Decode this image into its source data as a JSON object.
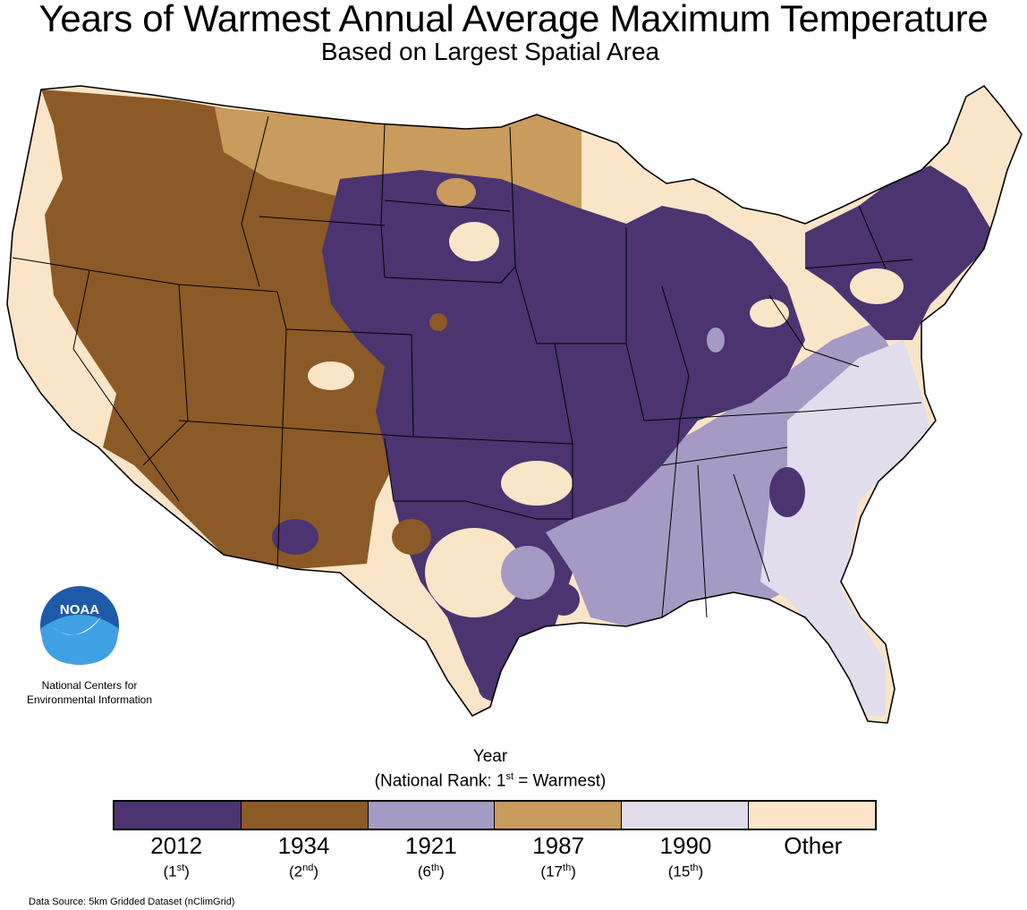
{
  "title": "Years of Warmest Annual Average Maximum Temperature",
  "subtitle": "Based on Largest Spatial Area",
  "logo": {
    "text": "NOAA",
    "org_line1": "National Centers for",
    "org_line2": "Environmental Information"
  },
  "legend": {
    "heading": "Year",
    "rank_note_prefix": "(National Rank: 1",
    "rank_note_sup": "st",
    "rank_note_suffix": " = Warmest)",
    "items": [
      {
        "year": "2012",
        "rank_num": "1",
        "rank_sup": "st",
        "color": "#4b3470"
      },
      {
        "year": "1934",
        "rank_num": "2",
        "rank_sup": "nd",
        "color": "#8c5a26"
      },
      {
        "year": "1921",
        "rank_num": "6",
        "rank_sup": "th",
        "color": "#a59ac3"
      },
      {
        "year": "1987",
        "rank_num": "17",
        "rank_sup": "th",
        "color": "#c99b5c"
      },
      {
        "year": "1990",
        "rank_num": "15",
        "rank_sup": "th",
        "color": "#e1ddec"
      },
      {
        "year": "Other",
        "rank_num": "",
        "rank_sup": "",
        "color": "#fbe5c8"
      }
    ]
  },
  "colors": {
    "c2012": "#4b3470",
    "c1934": "#8c5a26",
    "c1921": "#a59ac3",
    "c1987": "#c99b5c",
    "c1990": "#e1ddec",
    "other": "#fbe5c8",
    "noaa_blue": "#1e6fbf",
    "noaa_light": "#3fa1e3"
  },
  "source": "Data Source: 5km Gridded Dataset (nClimGrid)"
}
